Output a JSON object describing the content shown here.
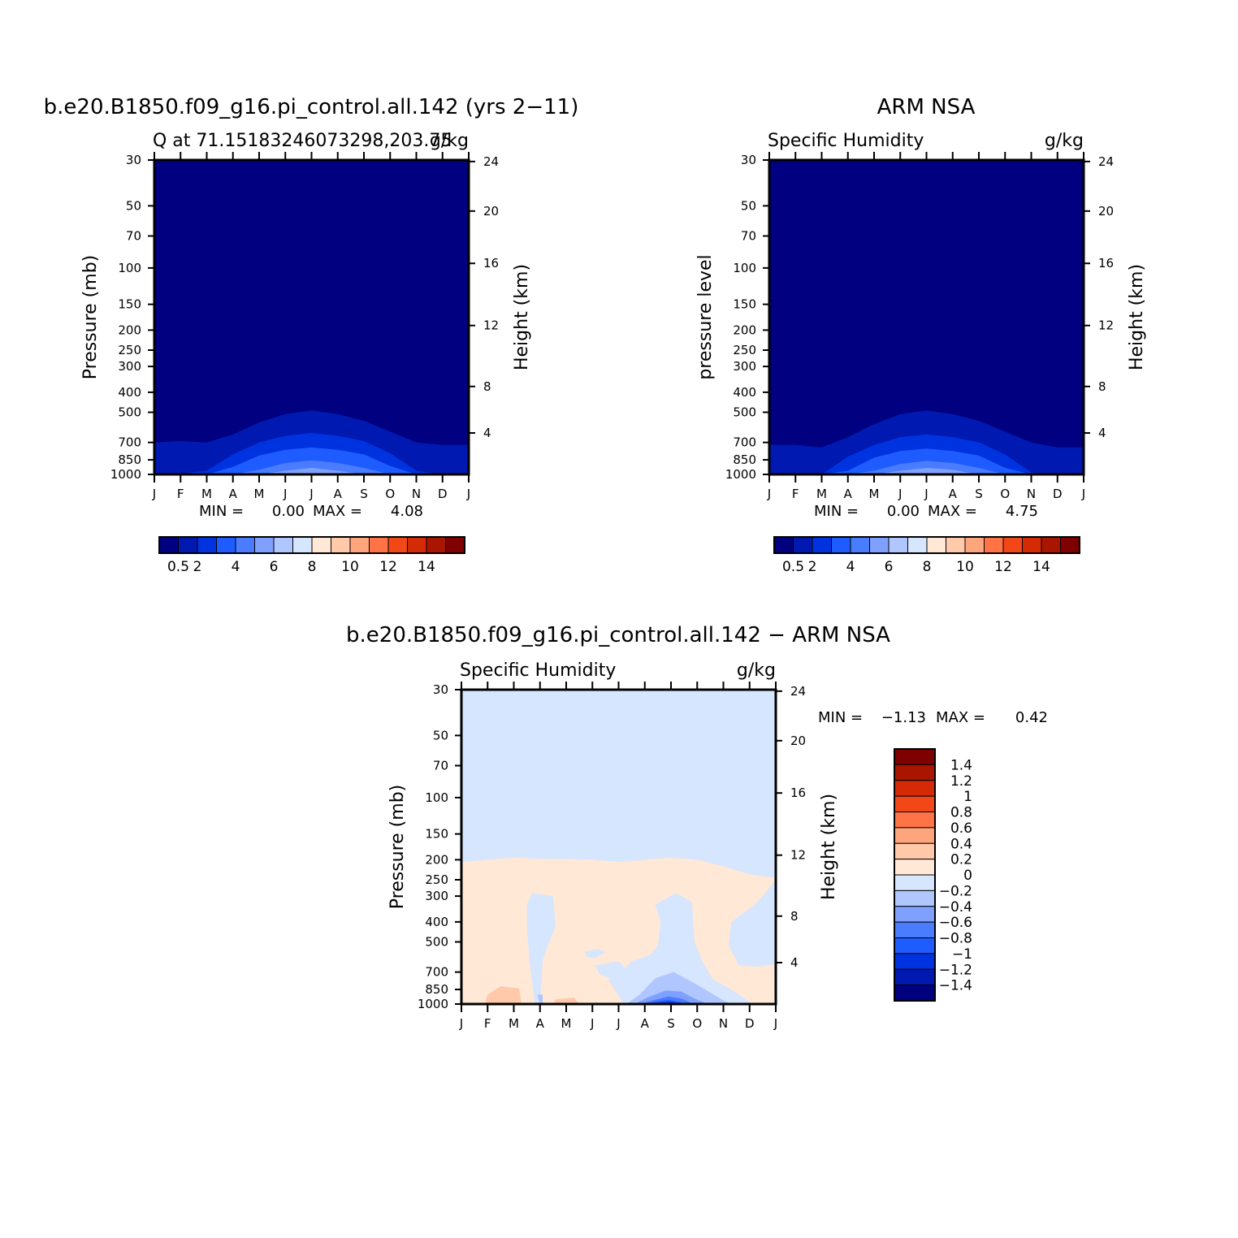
{
  "palette_abs": [
    "#000080",
    "#0019b0",
    "#0033e0",
    "#1e5cff",
    "#4a7cff",
    "#7fa0ff",
    "#afc6ff",
    "#d6e6ff",
    "#ffe8d6",
    "#ffc9aa",
    "#ffa57d",
    "#ff7346",
    "#f24716",
    "#d42a05",
    "#aa1500",
    "#7f0000"
  ],
  "palette_diff": [
    "#000080",
    "#0019b0",
    "#0033e0",
    "#1e5cff",
    "#4a7cff",
    "#7fa0ff",
    "#afc6ff",
    "#d6e6ff",
    "#ffe8d6",
    "#ffc9aa",
    "#ffa57d",
    "#ff7346",
    "#f24716",
    "#d42a05",
    "#aa1500",
    "#7f0000"
  ],
  "chart_data": [
    {
      "type": "heatmap",
      "title": "b.e20.B1850.f09_g16.pi_control.all.142 (yrs 2−11)",
      "subtitle_left": "Q at 71.15183246073298,203.75",
      "subtitle_right": "g/kg",
      "ylabel": "Pressure (mb)",
      "ylabel_right": "Height (km)",
      "x": [
        "J",
        "F",
        "M",
        "A",
        "M",
        "J",
        "J",
        "A",
        "S",
        "O",
        "N",
        "D",
        "J"
      ],
      "y_ticks": [
        "30",
        "50",
        "70",
        "100",
        "150",
        "200",
        "250",
        "300",
        "400",
        "500",
        "700",
        "850",
        "1000"
      ],
      "y_ticks_right": [
        "24",
        "20",
        "16",
        "12",
        "8",
        "4"
      ],
      "min_text": "MIN =",
      "min_val": "0.00",
      "max_text": "MAX =",
      "max_val": "4.08",
      "colorbar_labels": [
        "0.5",
        "2",
        "4",
        "6",
        "8",
        "10",
        "12",
        "14"
      ],
      "contour_top_hpa": {
        "months": [
          0,
          1,
          2,
          3,
          4,
          5,
          6,
          7,
          8,
          9,
          10,
          11,
          12
        ],
        "level_0_5": [
          700,
          690,
          700,
          640,
          560,
          510,
          490,
          510,
          550,
          620,
          700,
          720,
          720
        ],
        "level_1": [
          1000,
          990,
          950,
          790,
          700,
          650,
          630,
          650,
          690,
          790,
          950,
          1000,
          1000
        ],
        "level_2": [
          1000,
          1000,
          1000,
          920,
          810,
          760,
          740,
          760,
          800,
          910,
          1000,
          1000,
          1000
        ],
        "level_3": [
          1000,
          1000,
          1000,
          1000,
          950,
          880,
          860,
          880,
          930,
          1000,
          1000,
          1000,
          1000
        ]
      }
    },
    {
      "type": "heatmap",
      "title": "ARM NSA",
      "subtitle_left": "Specific Humidity",
      "subtitle_right": "g/kg",
      "ylabel": "pressure level",
      "ylabel_right": "Height (km)",
      "x": [
        "J",
        "F",
        "M",
        "A",
        "M",
        "J",
        "J",
        "A",
        "S",
        "O",
        "N",
        "D",
        "J"
      ],
      "y_ticks": [
        "30",
        "50",
        "70",
        "100",
        "150",
        "200",
        "250",
        "300",
        "400",
        "500",
        "700",
        "850",
        "1000"
      ],
      "y_ticks_right": [
        "24",
        "20",
        "16",
        "12",
        "8",
        "4"
      ],
      "min_text": "MIN =",
      "min_val": "0.00",
      "max_text": "MAX =",
      "max_val": "4.75",
      "colorbar_labels": [
        "0.5",
        "2",
        "4",
        "6",
        "8",
        "10",
        "12",
        "14"
      ]
    },
    {
      "type": "heatmap",
      "title": "b.e20.B1850.f09_g16.pi_control.all.142 − ARM NSA",
      "subtitle_left": "Specific Humidity",
      "subtitle_right": "g/kg",
      "ylabel": "Pressure (mb)",
      "ylabel_right": "Height (km)",
      "x": [
        "J",
        "F",
        "M",
        "A",
        "M",
        "J",
        "J",
        "A",
        "S",
        "O",
        "N",
        "D",
        "J"
      ],
      "y_ticks": [
        "30",
        "50",
        "70",
        "100",
        "150",
        "200",
        "250",
        "300",
        "400",
        "500",
        "700",
        "850",
        "1000"
      ],
      "y_ticks_right": [
        "24",
        "20",
        "16",
        "12",
        "8",
        "4"
      ],
      "min_text": "MIN =",
      "min_val": "−1.13",
      "max_text": "MAX =",
      "max_val": "0.42",
      "colorbar_labels": [
        "1.4",
        "1.2",
        "1",
        "0.8",
        "0.6",
        "0.4",
        "0.2",
        "0",
        "−0.2",
        "−0.4",
        "−0.6",
        "−0.8",
        "−1",
        "−1.2",
        "−1.4"
      ]
    }
  ]
}
